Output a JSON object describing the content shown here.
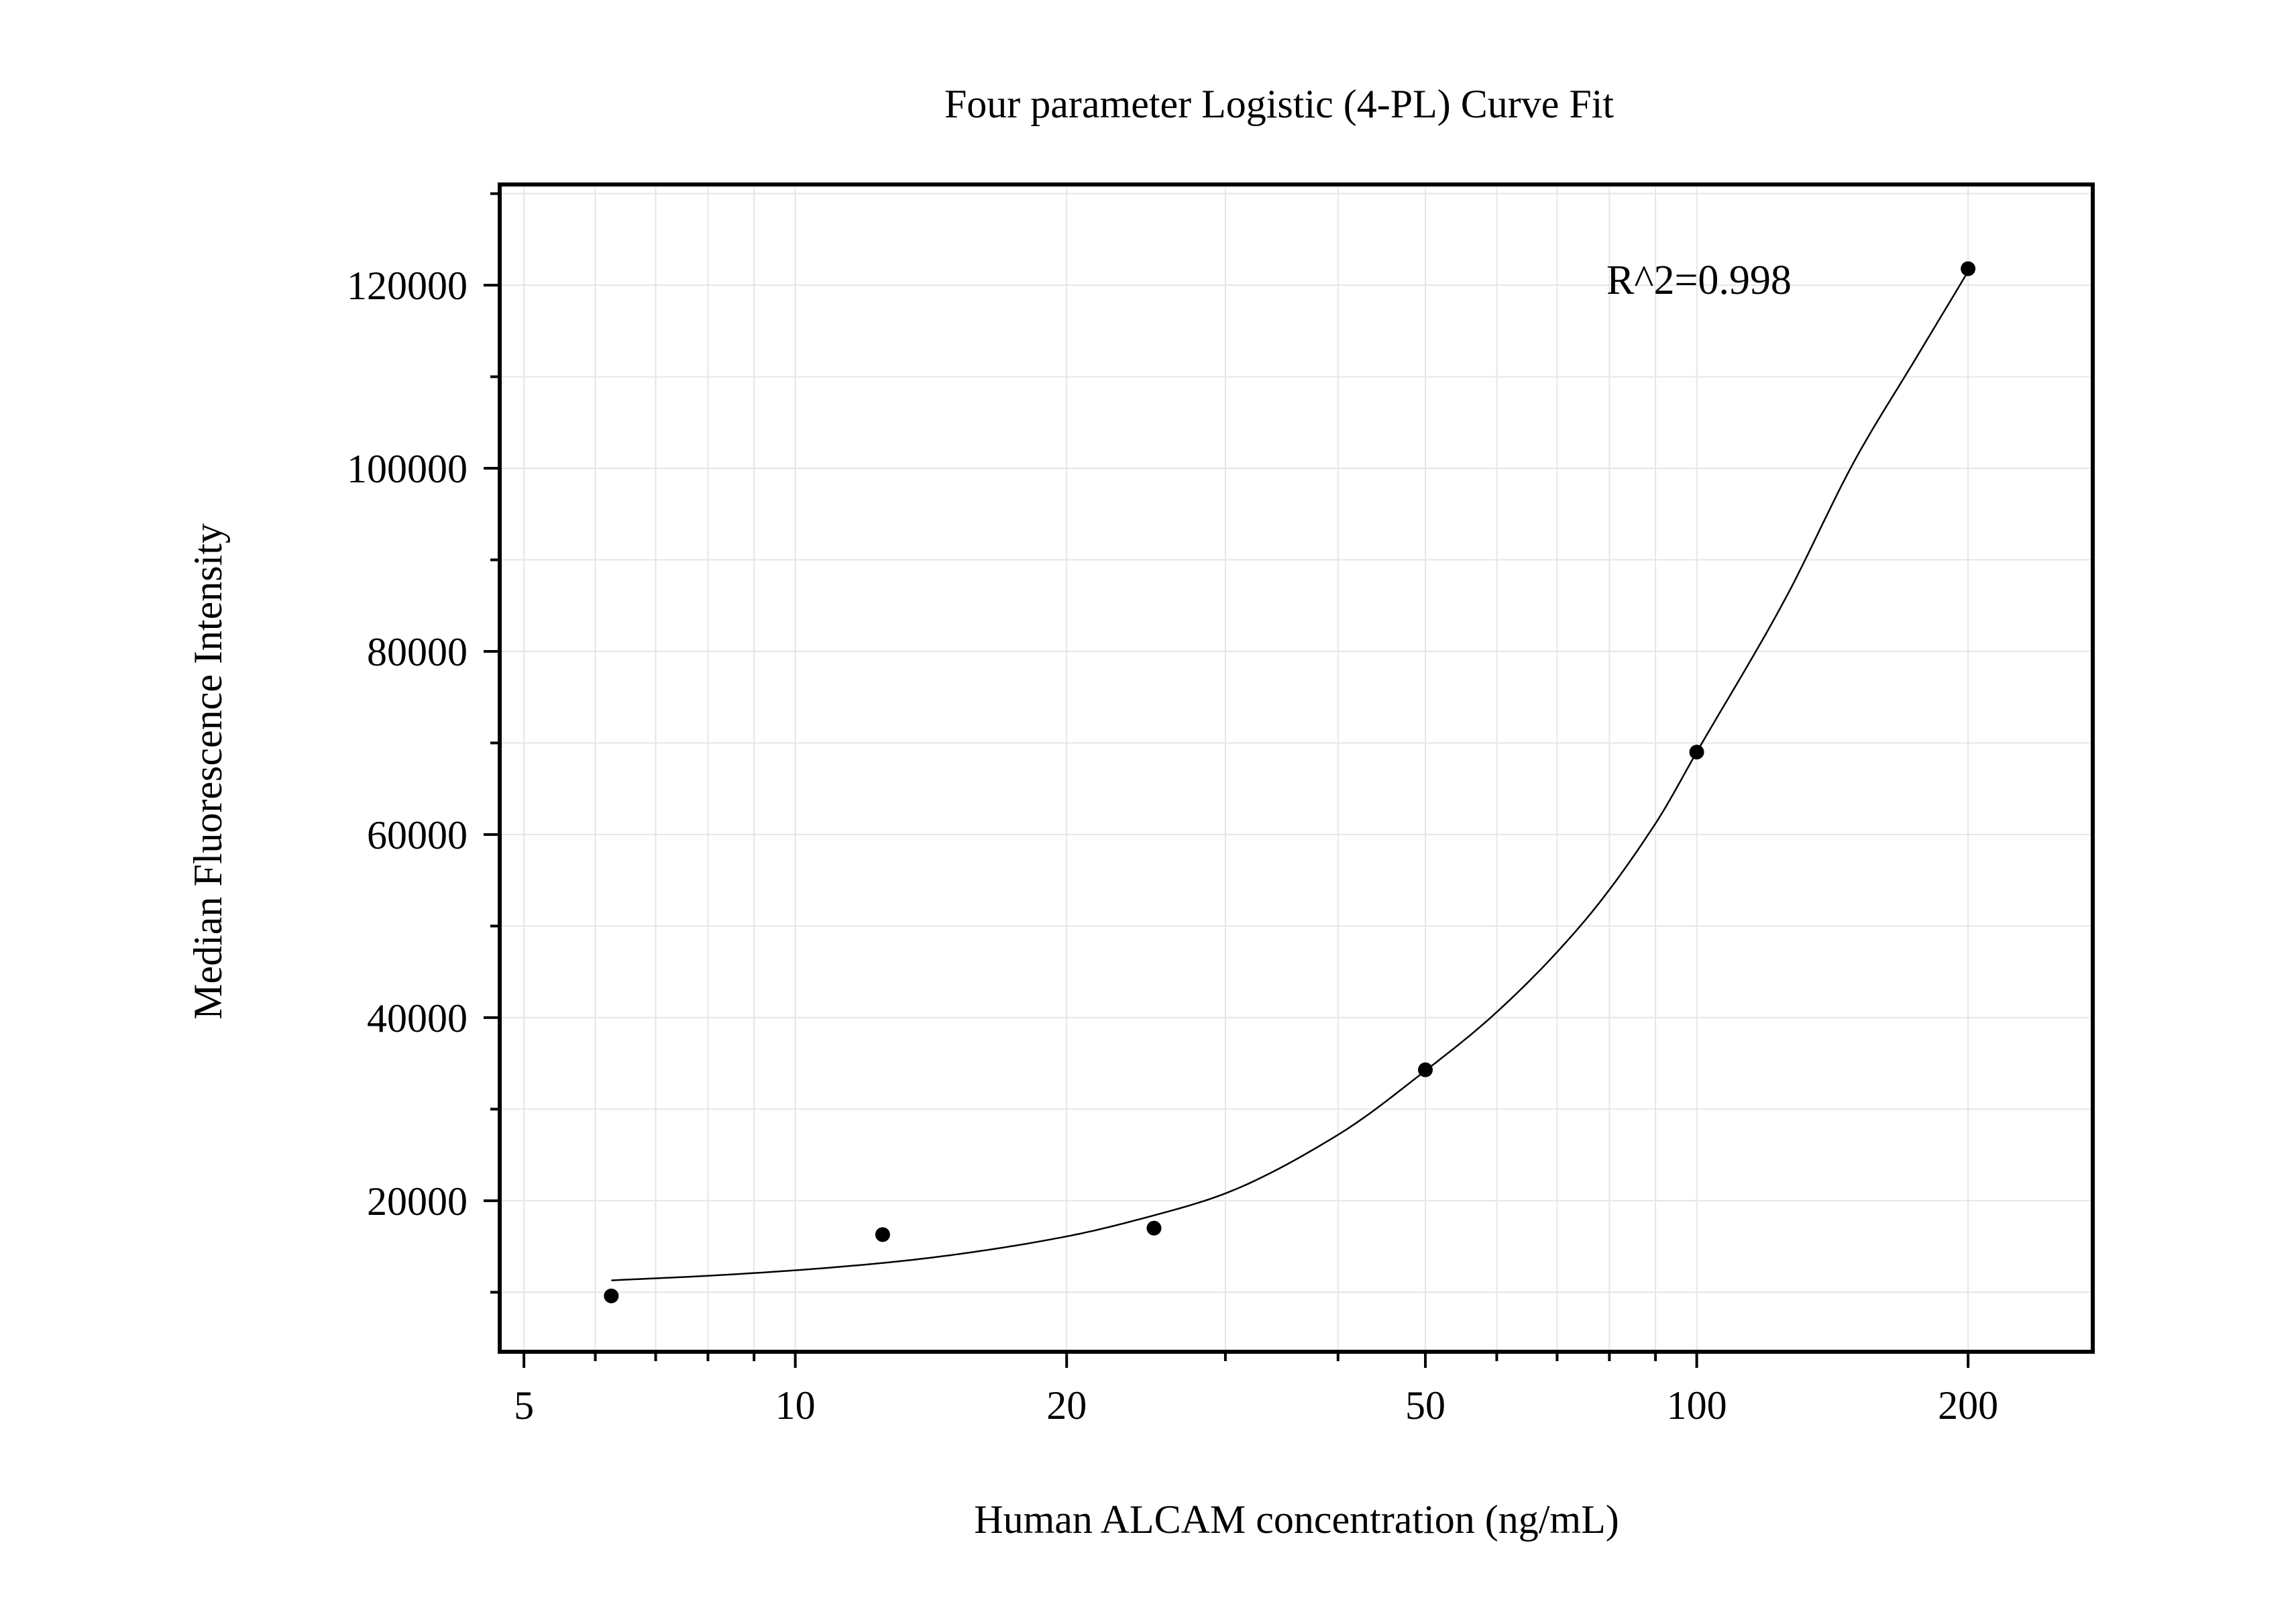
{
  "chart_data": {
    "type": "scatter",
    "title": "Four parameter Logistic (4-PL) Curve Fit",
    "xlabel": "Human ALCAM concentration (ng/mL)",
    "ylabel": "Median Fluorescence Intensity",
    "x_scale": "log",
    "xlim": [
      4.7,
      275
    ],
    "ylim": [
      3500,
      131000
    ],
    "x_ticks": [
      5,
      10,
      20,
      50,
      100,
      200
    ],
    "x_tick_labels": [
      "5",
      "10",
      "20",
      "50",
      "100",
      "200"
    ],
    "y_ticks": [
      20000,
      40000,
      60000,
      80000,
      100000,
      120000
    ],
    "y_tick_labels": [
      "20000",
      "40000",
      "60000",
      "80000",
      "100000",
      "120000"
    ],
    "grid": true,
    "annotation": "R^2=0.998",
    "series": [
      {
        "type": "scatter",
        "x": [
          6.25,
          12.5,
          25,
          50,
          100,
          200
        ],
        "y": [
          9600,
          16300,
          17000,
          34300,
          69000,
          121800
        ]
      },
      {
        "type": "line",
        "x": [
          6.25,
          8,
          10,
          12.5,
          15,
          20,
          25,
          30,
          40,
          50,
          60,
          75,
          90,
          100,
          125,
          150,
          175,
          200
        ],
        "y": [
          11300,
          11800,
          12400,
          13200,
          14100,
          16100,
          18400,
          20800,
          27200,
          34200,
          40600,
          50500,
          61200,
          69000,
          85500,
          101000,
          112000,
          121500
        ]
      }
    ],
    "colors": {
      "points": "#000000",
      "curve": "#000000",
      "grid": "#e6e6e6",
      "frame": "#000000"
    }
  }
}
